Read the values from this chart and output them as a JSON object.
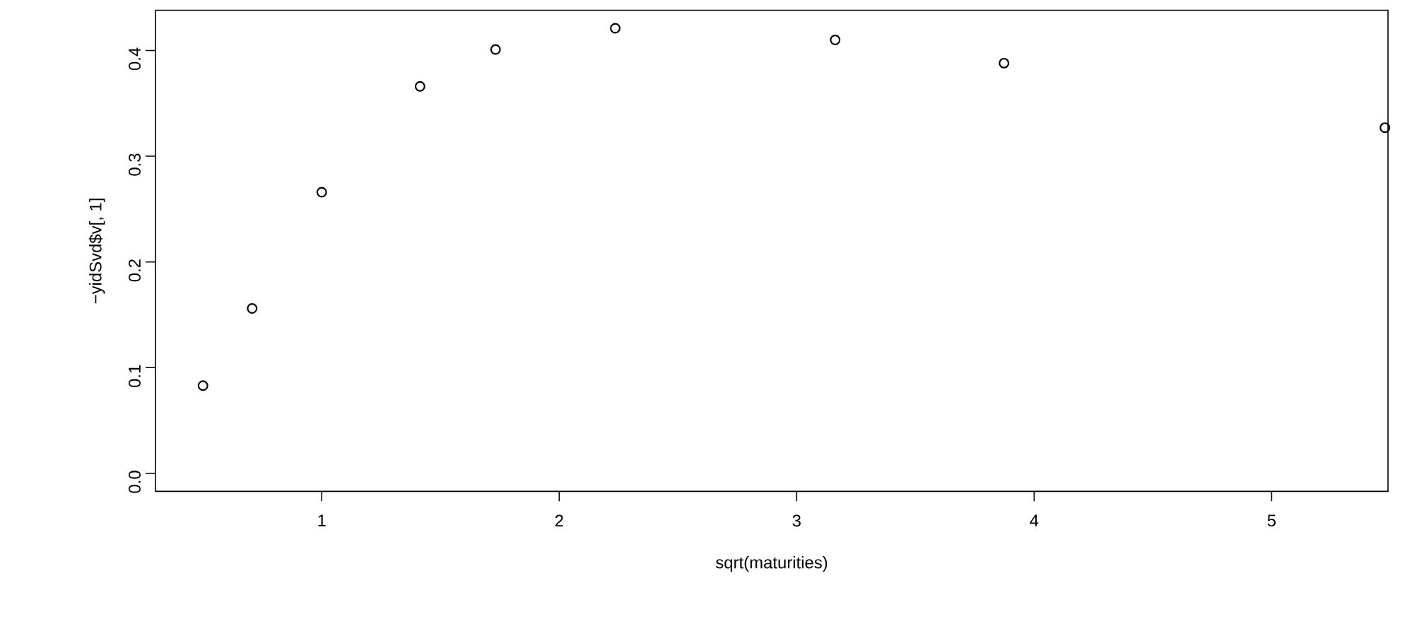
{
  "chart_data": {
    "type": "scatter",
    "xlabel": "sqrt(maturities)",
    "ylabel": "−yidSvd$v[, 1]",
    "x": [
      0.5,
      0.707,
      1.0,
      1.414,
      1.732,
      2.236,
      3.162,
      3.873,
      5.477
    ],
    "values": [
      0.083,
      0.156,
      0.266,
      0.366,
      0.401,
      0.421,
      0.41,
      0.388,
      0.327
    ],
    "color": "#000000",
    "marker": "circle",
    "xlim": [
      0.3,
      5.49
    ],
    "ylim": [
      -0.017,
      0.438
    ],
    "xticks": [
      1,
      2,
      3,
      4,
      5
    ],
    "yticks": [
      {
        "value": 0,
        "label": "0.0"
      },
      {
        "value": 0.1,
        "label": "0.1"
      },
      {
        "value": 0.2,
        "label": "0.2"
      },
      {
        "value": 0.3,
        "label": "0.3"
      },
      {
        "value": 0.4,
        "label": "0.4"
      }
    ]
  }
}
